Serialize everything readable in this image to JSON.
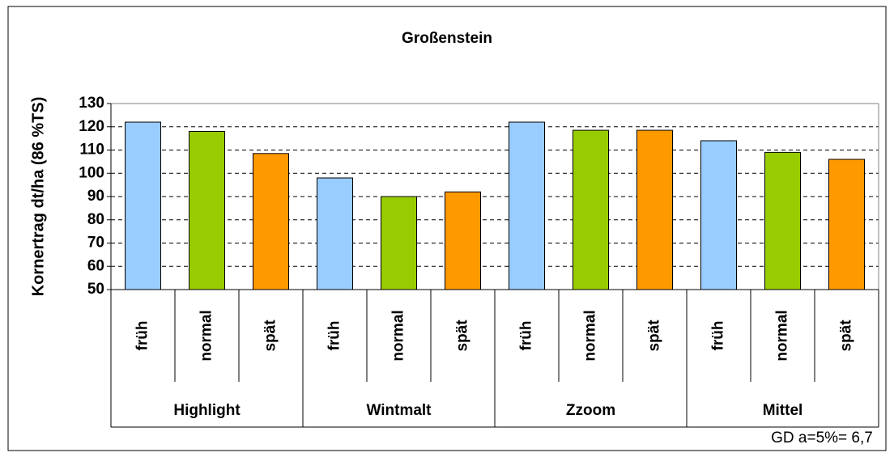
{
  "chart_data": {
    "type": "bar",
    "title": "Großenstein",
    "y_label": "Kornertrag dt/ha (86 %TS)",
    "categories": [
      "Highlight",
      "Wintmalt",
      "Zzoom",
      "Mittel"
    ],
    "series": [
      {
        "name": "früh",
        "color": "#99ccff",
        "values": [
          122,
          98,
          122,
          114
        ]
      },
      {
        "name": "normal",
        "color": "#99cc00",
        "values": [
          118,
          90,
          118.5,
          109
        ]
      },
      {
        "name": "spät",
        "color": "#ff9900",
        "values": [
          108.5,
          92,
          118.5,
          106
        ]
      }
    ],
    "ylim": [
      50,
      130
    ],
    "yticks": [
      50,
      60,
      70,
      80,
      90,
      100,
      110,
      120,
      130
    ],
    "grid": true,
    "annotation": "GD a=5%= 6,7"
  }
}
